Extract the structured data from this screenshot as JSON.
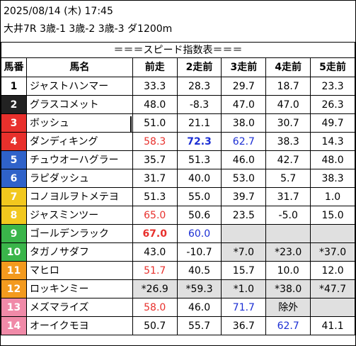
{
  "header": {
    "datetime": "2025/08/14 (木) 17:45",
    "race": "大井7R 3歳-1 3歳-2 3歳-3 ダ1200m"
  },
  "table": {
    "title": "＝＝＝スピード指数表＝＝＝",
    "columns": [
      "馬番",
      "馬名",
      "前走",
      "2走前",
      "3走前",
      "4走前",
      "5走前"
    ],
    "rows": [
      {
        "no": "1",
        "name": "ジャストハンマー",
        "bg": "#ffffff",
        "fg": "#000000",
        "v": [
          "33.3",
          "28.3",
          "29.7",
          "18.7",
          "23.3"
        ]
      },
      {
        "no": "2",
        "name": "グラスコメット",
        "bg": "#222222",
        "fg": "#ffffff",
        "v": [
          "48.0",
          "-8.3",
          "47.0",
          "47.0",
          "26.3"
        ]
      },
      {
        "no": "3",
        "name": "ボッシュ",
        "bg": "#e8302c",
        "fg": "#ffffff",
        "v": [
          "51.0",
          "21.1",
          "38.0",
          "30.7",
          "49.7"
        ]
      },
      {
        "no": "4",
        "name": "ダンディキング",
        "bg": "#e8302c",
        "fg": "#ffffff",
        "v": [
          "58.3",
          "72.3",
          "62.7",
          "38.3",
          "14.3"
        ]
      },
      {
        "no": "5",
        "name": "チュウオーハグラー",
        "bg": "#2f62c9",
        "fg": "#ffffff",
        "v": [
          "35.7",
          "51.3",
          "46.0",
          "42.7",
          "48.0"
        ]
      },
      {
        "no": "6",
        "name": "ラピダッシュ",
        "bg": "#2f62c9",
        "fg": "#ffffff",
        "v": [
          "31.7",
          "40.0",
          "53.0",
          "5.7",
          "38.3"
        ]
      },
      {
        "no": "7",
        "name": "コノヨルヲトメテヨ",
        "bg": "#f2c81e",
        "fg": "#ffffff",
        "v": [
          "51.3",
          "55.0",
          "39.7",
          "31.7",
          "1.0"
        ]
      },
      {
        "no": "8",
        "name": "ジャスミンツー",
        "bg": "#f2c81e",
        "fg": "#ffffff",
        "v": [
          "65.0",
          "50.6",
          "23.5",
          "-5.0",
          "15.0"
        ]
      },
      {
        "no": "9",
        "name": "ゴールデンラック",
        "bg": "#3ab54a",
        "fg": "#ffffff",
        "v": [
          "67.0",
          "60.0",
          "",
          "",
          ""
        ]
      },
      {
        "no": "10",
        "name": "タガノサダフ",
        "bg": "#3ab54a",
        "fg": "#ffffff",
        "v": [
          "43.0",
          "-10.7",
          "*7.0",
          "*23.0",
          "*37.0"
        ]
      },
      {
        "no": "11",
        "name": "マヒロ",
        "bg": "#f39a1e",
        "fg": "#ffffff",
        "v": [
          "51.7",
          "40.5",
          "15.7",
          "10.0",
          "12.0"
        ]
      },
      {
        "no": "12",
        "name": "ロッキンミー",
        "bg": "#f39a1e",
        "fg": "#ffffff",
        "v": [
          "*26.9",
          "*59.3",
          "*1.0",
          "*38.0",
          "*47.7"
        ]
      },
      {
        "no": "13",
        "name": "メズマライズ",
        "bg": "#f08aa8",
        "fg": "#ffffff",
        "v": [
          "58.0",
          "46.0",
          "71.7",
          "除外",
          ""
        ]
      },
      {
        "no": "14",
        "name": "オーイクモヨ",
        "bg": "#f08aa8",
        "fg": "#ffffff",
        "v": [
          "50.7",
          "55.7",
          "36.7",
          "62.7",
          "41.1"
        ]
      }
    ]
  }
}
